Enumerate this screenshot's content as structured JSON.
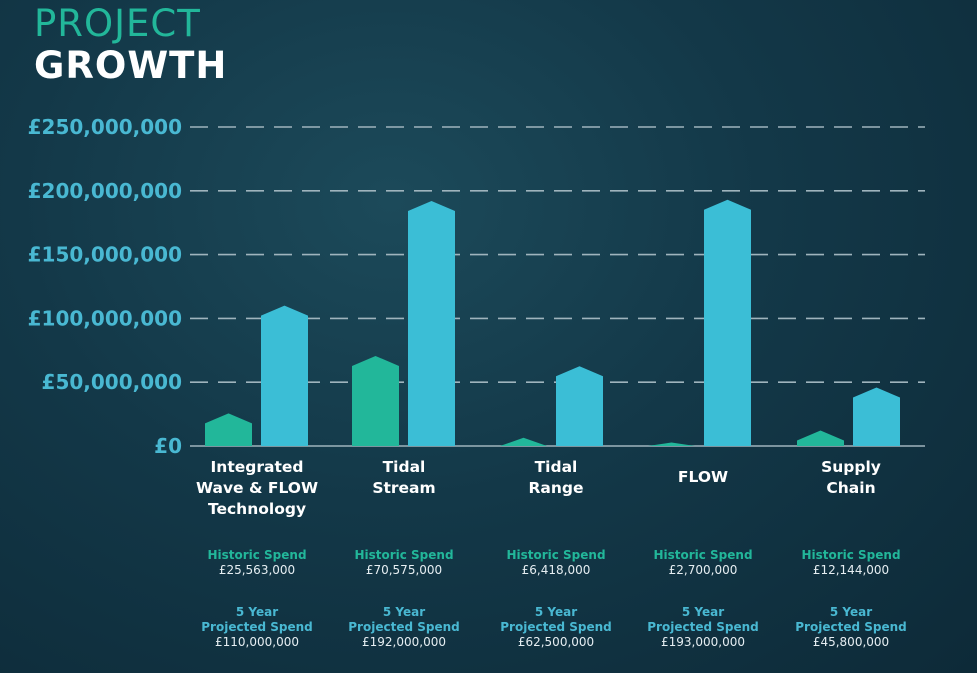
{
  "title": {
    "line1": "PROJECT",
    "line2": "GROWTH"
  },
  "colors": {
    "historic": "#22b79a",
    "projected": "#3bbed6",
    "axis_text": "#49b8d2",
    "grid": "#9fb4bd"
  },
  "chart_data": {
    "type": "bar",
    "categories": [
      "Integrated\nWave & FLOW\nTechnology",
      "Tidal\nStream",
      "Tidal\nRange",
      "FLOW",
      "Supply\nChain"
    ],
    "series": [
      {
        "name": "Historic Spend",
        "values": [
          25563000,
          70575000,
          6418000,
          2700000,
          12144000
        ]
      },
      {
        "name": "5 Year Projected Spend",
        "values": [
          110000000,
          192000000,
          62500000,
          193000000,
          45800000
        ]
      }
    ],
    "ylim": [
      0,
      250000000
    ],
    "yticks": [
      "£0",
      "£50,000,000",
      "£100,000,000",
      "£150,000,000",
      "£200,000,000",
      "£250,000,000"
    ],
    "grid": true,
    "historic_label": "Historic Spend",
    "projected_label": "5 Year\nProjected Spend",
    "historic_values_text": [
      "£25,563,000",
      "£70,575,000",
      "£6,418,000",
      "£2,700,000",
      "£12,144,000"
    ],
    "projected_values_text": [
      "£110,000,000",
      "£192,000,000",
      "£62,500,000",
      "£193,000,000",
      "£45,800,000"
    ]
  }
}
